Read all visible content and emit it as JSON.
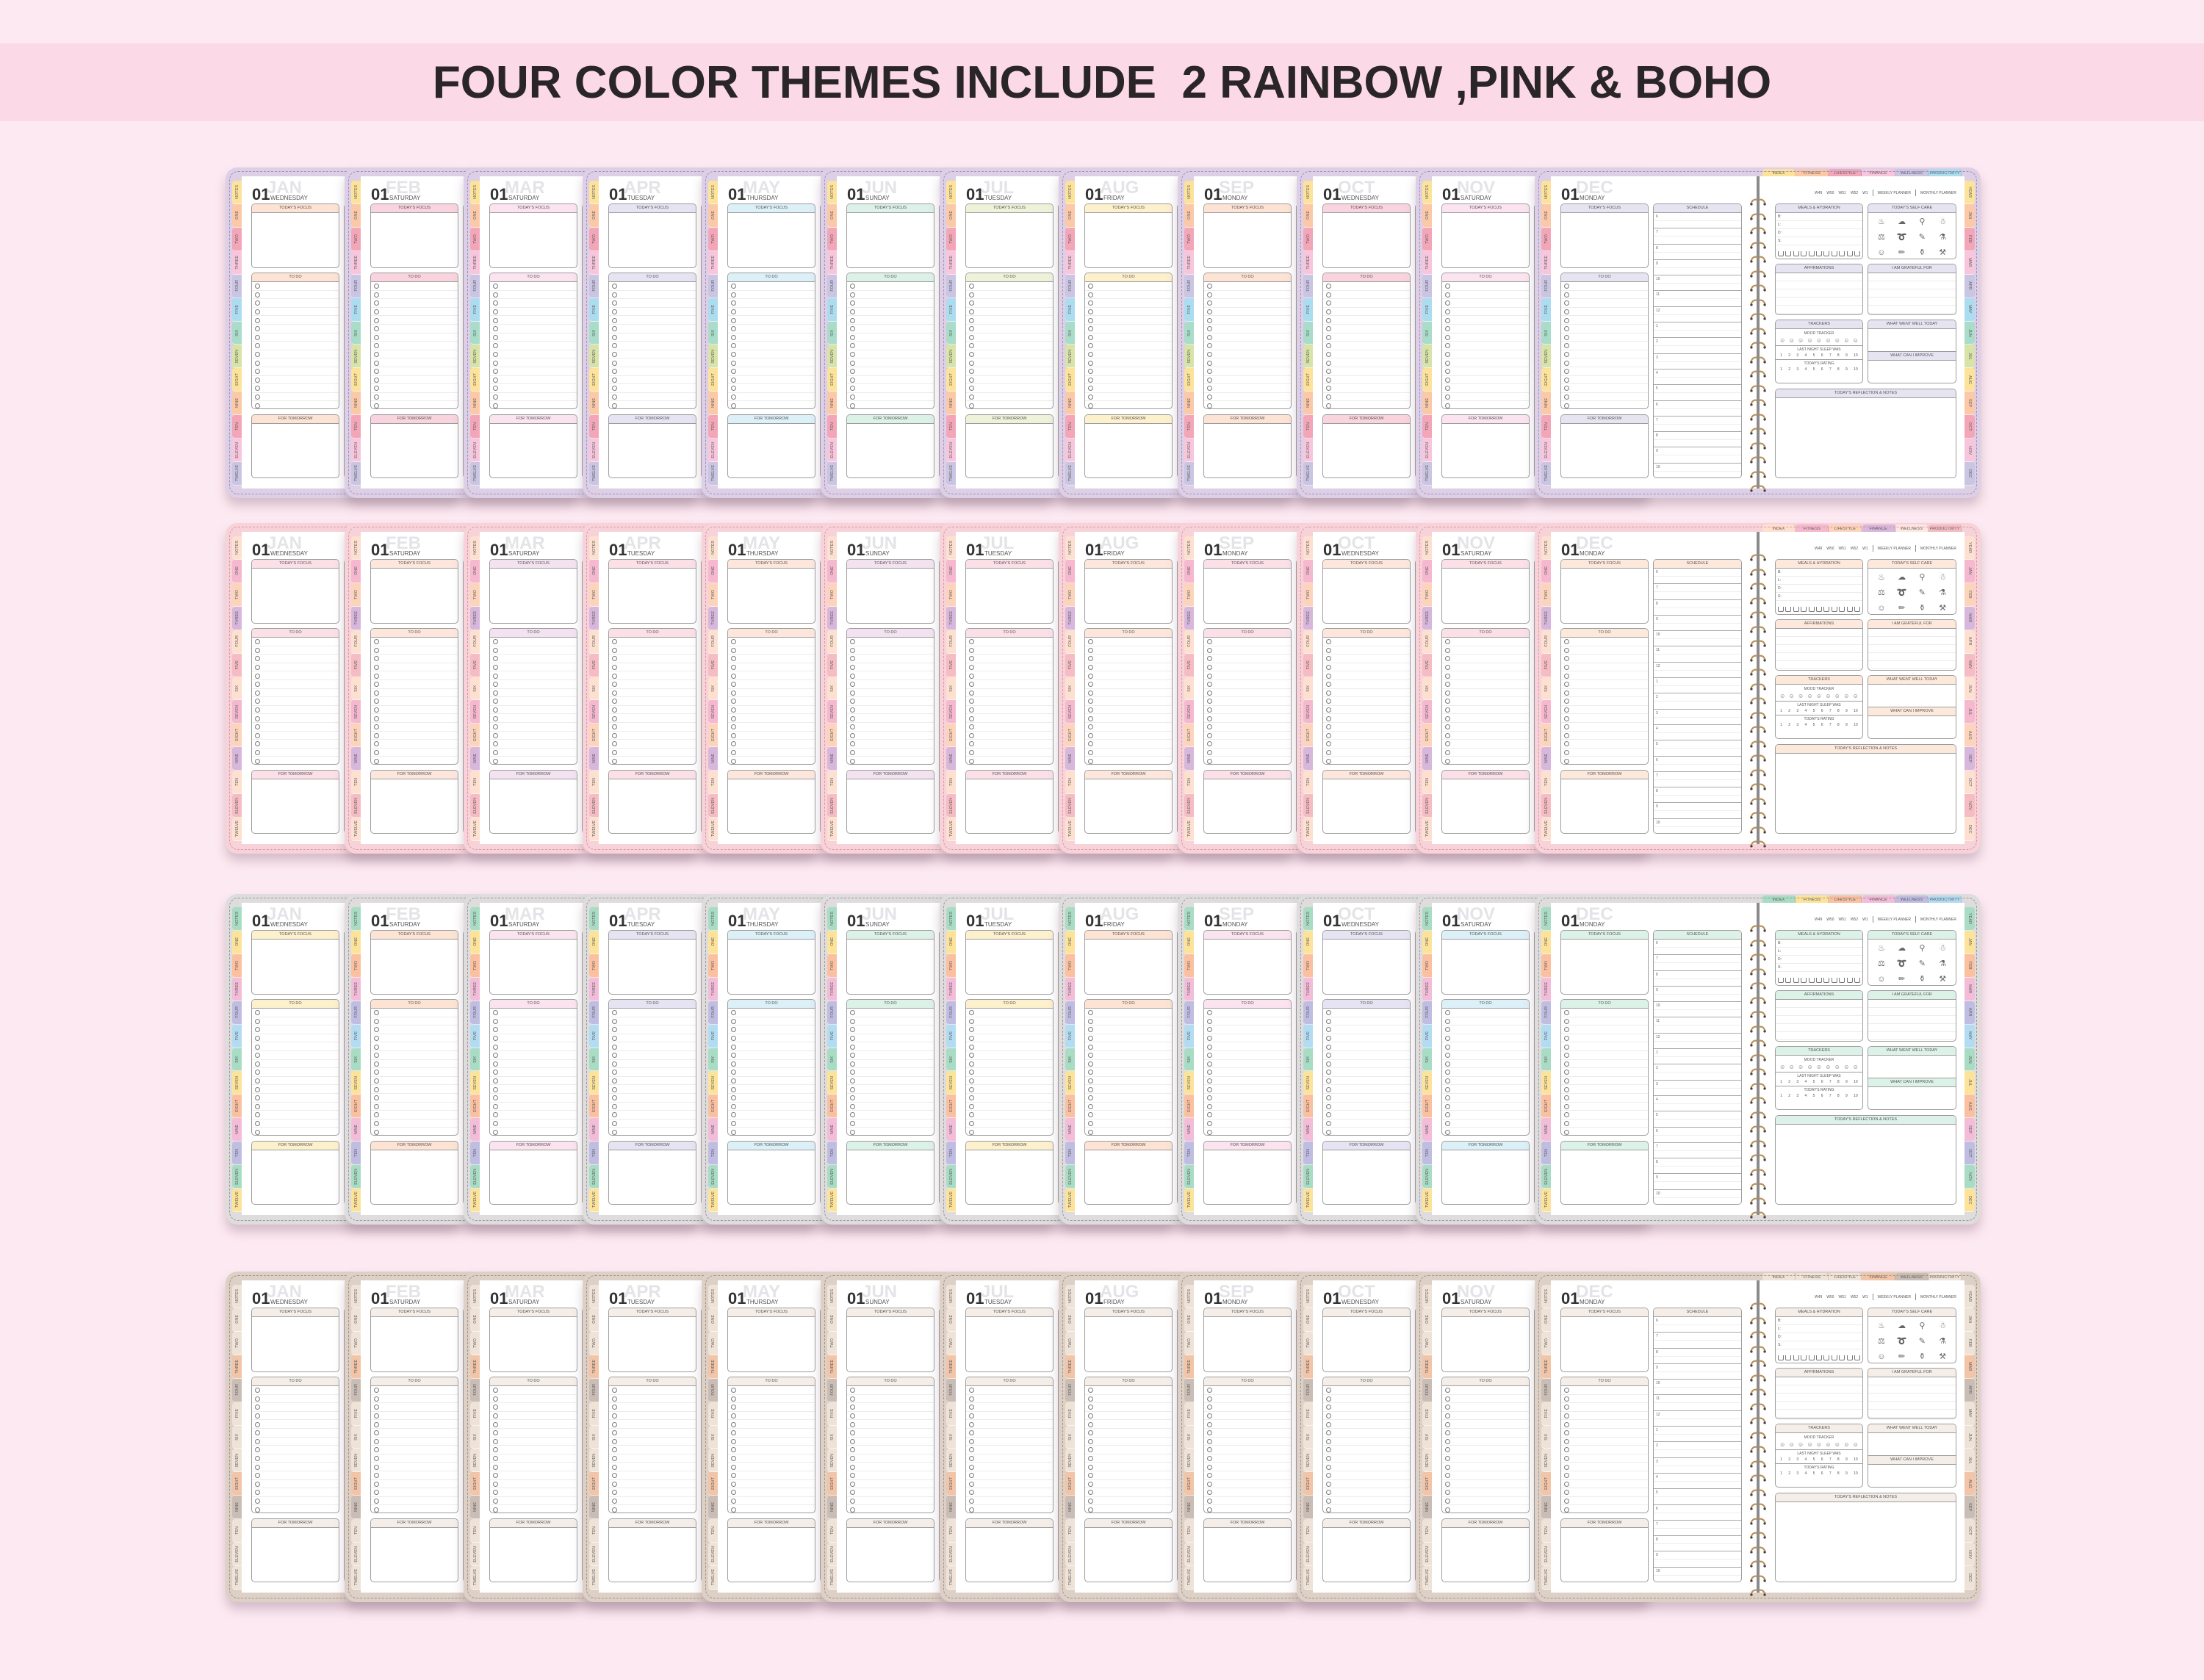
{
  "title": "FOUR COLOR THEMES INCLUDE  2 RAINBOW ,PINK & BOHO",
  "colors": {
    "background": "#fde9f1",
    "band": "#fcd9e7",
    "title_text": "#2a2527",
    "box_border": "#9d9d9d",
    "spiral_gold": "#b8925e"
  },
  "themes": [
    {
      "frame": "#dccfe6",
      "dash": "#a493b8",
      "tabs": [
        "#fde39a",
        "#fbc9a8",
        "#f3a6b8",
        "#f8c6dc",
        "#c9c5e3",
        "#acdcf0",
        "#a9dcc9",
        "#d8e3a8",
        "#fde39a",
        "#fbc9a8",
        "#f3a6b8",
        "#f8c6dc",
        "#c9c5e3"
      ],
      "headers": [
        "#fde3d3",
        "#f9d3dd",
        "#fbe3ef",
        "#e6e4f3",
        "#dcf0f8",
        "#dcf1e8",
        "#eef2d8",
        "#fdf0cc",
        "#fde3d3",
        "#f9d3dd",
        "#fbe3ef",
        "#e6e4f1"
      ],
      "top_tabs": [
        "#fde39a",
        "#fbc9a8",
        "#f3a6b8",
        "#f8c6dc",
        "#c9c5e3",
        "#acdcf0"
      ]
    },
    {
      "frame": "#f7d3d9",
      "dash": "#d99aa6",
      "tabs": [
        "#fde0cf",
        "#f5b8cf",
        "#fcd4bc",
        "#d8b7dc",
        "#fde0cf",
        "#f5bcc4",
        "#fde0cf",
        "#f5b8cf",
        "#fcd4bc",
        "#d8b7dc",
        "#fde0cf",
        "#f5bcc4",
        "#fde0cf"
      ],
      "headers": [
        "#fbe0e8",
        "#fde7dc",
        "#f3e3f1",
        "#fbe0e8",
        "#fde7dc",
        "#f3e3f1",
        "#fbe0e8",
        "#fde7dc",
        "#fbe0e8",
        "#fde7dc",
        "#fbe0e8",
        "#fde9dc"
      ],
      "top_tabs": [
        "#fde0cf",
        "#f5b8cf",
        "#fcd4bc",
        "#d8b7dc",
        "#fde8e0",
        "#f5bcc4"
      ]
    },
    {
      "frame": "#dedcdc",
      "dash": "#9c9a9a",
      "tabs": [
        "#a8dcc4",
        "#fde39a",
        "#fbc0a0",
        "#f3bcd8",
        "#c0bde3",
        "#b3dcf3",
        "#a8dcc4",
        "#fde39a",
        "#fbc0a0",
        "#f3bcd8",
        "#c0bde3",
        "#a8dcc4",
        "#fde39a"
      ],
      "headers": [
        "#fdf0cc",
        "#fde3d3",
        "#fbe3ef",
        "#e6e4f3",
        "#dcf0f8",
        "#dcf1e8",
        "#fdf0cc",
        "#fde3d3",
        "#fbe3ef",
        "#e6e4f3",
        "#dcf0f8",
        "#dcf1e8"
      ],
      "top_tabs": [
        "#a8dcc4",
        "#fde39a",
        "#fbc0a0",
        "#f3bcd8",
        "#c0bde3",
        "#b3dcf3"
      ]
    },
    {
      "frame": "#ddd0c6",
      "dash": "#a89484",
      "tabs": [
        "#efe3d8",
        "#efe3d8",
        "#efe3d8",
        "#f2c4a8",
        "#c9bdb5",
        "#efe3d8",
        "#efe3d8",
        "#efe3d8",
        "#f2c4a8",
        "#c9bdb5",
        "#efe3d8",
        "#efe3d8",
        "#efe3d8"
      ],
      "headers": [
        "#f5eee8",
        "#f5eee8",
        "#f5eee8",
        "#f5eee8",
        "#f5eee8",
        "#f5eee8",
        "#f5eee8",
        "#f5eee8",
        "#f5eee8",
        "#f5eee8",
        "#f5eee8",
        "#f5eee8"
      ],
      "top_tabs": [
        "#efe3d8",
        "#efe3d8",
        "#efe3d8",
        "#f2c4a8",
        "#c9bdb5",
        "#efe3d8"
      ]
    }
  ],
  "pages": [
    {
      "day": "01",
      "month": "JAN",
      "weekday": "WEDNESDAY"
    },
    {
      "day": "01",
      "month": "FEB",
      "weekday": "SATURDAY"
    },
    {
      "day": "01",
      "month": "MAR",
      "weekday": "SATURDAY"
    },
    {
      "day": "01",
      "month": "APR",
      "weekday": "TUESDAY"
    },
    {
      "day": "01",
      "month": "MAY",
      "weekday": "THURSDAY"
    },
    {
      "day": "01",
      "month": "JUN",
      "weekday": "SUNDAY"
    },
    {
      "day": "01",
      "month": "JUL",
      "weekday": "TUESDAY"
    },
    {
      "day": "01",
      "month": "AUG",
      "weekday": "FRIDAY"
    },
    {
      "day": "01",
      "month": "SEP",
      "weekday": "MONDAY"
    },
    {
      "day": "01",
      "month": "OCT",
      "weekday": "WEDNESDAY"
    },
    {
      "day": "01",
      "month": "NOV",
      "weekday": "SATURDAY"
    },
    {
      "day": "01",
      "month": "DEC",
      "weekday": "MONDAY"
    }
  ],
  "left_tabs": [
    "NOTES",
    "ONE",
    "TWO",
    "THREE",
    "FOUR",
    "FIVE",
    "SIX",
    "SEVEN",
    "EIGHT",
    "NINE",
    "TEN",
    "ELEVEN",
    "TWELVE"
  ],
  "labels": {
    "todays_focus": "TODAY'S FOCUS",
    "todo": "TO DO",
    "for_tomorrow": "FOR TOMORROW",
    "schedule": "SCHEDULE",
    "hours": [
      "6",
      "7",
      "8",
      "9",
      "10",
      "11",
      "12",
      "1",
      "2",
      "3",
      "4",
      "5",
      "6",
      "7",
      "8",
      "9",
      "10"
    ]
  },
  "spread": {
    "top_tabs": [
      "INDEX",
      "FITNESS",
      "LIFESTYLE",
      "FINANCE",
      "WELLNESS",
      "PRODUCTIVITY"
    ],
    "week_links": [
      "W49",
      "W50",
      "W51",
      "W52",
      "W1"
    ],
    "weekly_planner": "WEEKLY PLANNER",
    "monthly_planner": "MONTHLY PLANNER",
    "right_tabs": [
      "YEAR",
      "JAN",
      "FEB",
      "MAR",
      "APR",
      "MAY",
      "JUN",
      "JUL",
      "AUG",
      "SEP",
      "OCT",
      "NOV",
      "DEC"
    ],
    "meals": "MEALS & HYDRATION",
    "meal_labels": [
      "B:",
      "L:",
      "D:",
      "S:"
    ],
    "self_care": "TODAY'S SELF CARE",
    "self_care_icons": [
      "bathtub-icon",
      "face-mask-icon",
      "mirror-icon",
      "hair-wash-icon",
      "dumbbell-icon",
      "jump-rope-icon",
      "lipstick-icon",
      "skincare-bottle-icon",
      "meditation-icon",
      "nail-file-icon",
      "lotion-icon",
      "hair-dryer-icon"
    ],
    "affirmations": "AFFIRMATIONS",
    "grateful": "I AM GRATEFUL FOR",
    "trackers": "TRACKERS",
    "mood_tracker": "MOOD TRACKER",
    "sleep": "LAST NIGHT SLEEP WAS",
    "rating": "TODAY'S RATING",
    "scale": [
      "1",
      "2",
      "3",
      "4",
      "5",
      "6",
      "7",
      "8",
      "9",
      "10"
    ],
    "went_well": "WHAT WENT WELL TODAY",
    "improve": "WHAT CAN I IMPROVE",
    "reflection": "TODAY'S REFLECTION & NOTES"
  }
}
